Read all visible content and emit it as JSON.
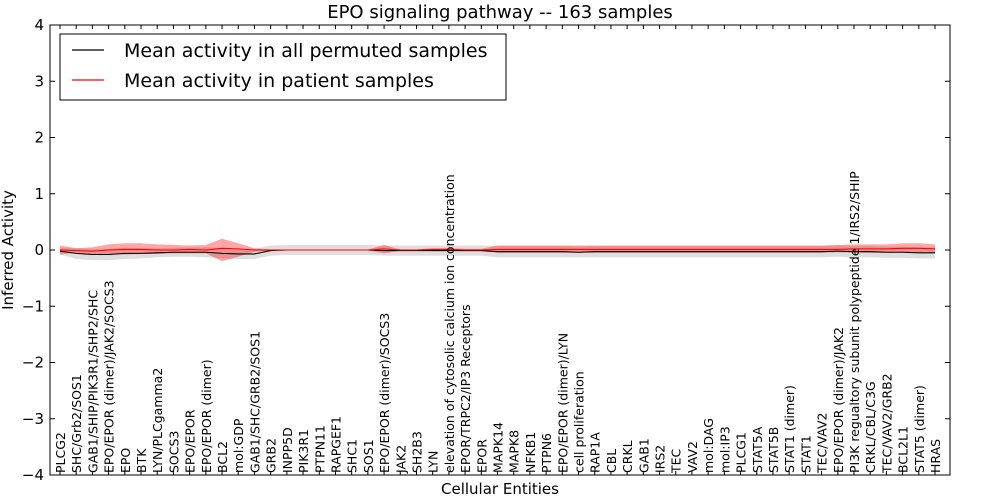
{
  "chart_data": {
    "type": "line",
    "title": "EPO signaling pathway -- 163 samples",
    "xlabel": "Cellular Entities",
    "ylabel": "Inferred Activity",
    "ylim": [
      -4,
      4
    ],
    "yticks": [
      -4,
      -3,
      -2,
      -1,
      0,
      1,
      2,
      3,
      4
    ],
    "ytick_labels": [
      "−4",
      "−3",
      "−2",
      "−1",
      "0",
      "1",
      "2",
      "3",
      "4"
    ],
    "grid": false,
    "legend_position": "top-left",
    "categories": [
      "PLCG2",
      "SHC/Grb2/SOS1",
      "GAB1/SHIP/PIK3R1/SHP2/SHC",
      "EPO/EPOR (dimer)/JAK2/SOCS3",
      "EPO",
      "BTK",
      "LYN/PLCgamma2",
      "SOCS3",
      "EPO/EPOR",
      "EPO/EPOR (dimer)",
      "BCL2",
      "mol:GDP",
      "GAB1/SHC/GRB2/SOS1",
      "GRB2",
      "INPP5D",
      "PIK3R1",
      "PTPN11",
      "RAPGEF1",
      "SHC1",
      "SOS1",
      "EPO/EPOR (dimer)/SOCS3",
      "JAK2",
      "SH2B3",
      "LYN",
      "elevation of cytosolic calcium ion concentration",
      "EPOR/TRPC2/IP3 Receptors",
      "EPOR",
      "MAPK14",
      "MAPK8",
      "NFKB1",
      "PTPN6",
      "EPO/EPOR (dimer)/LYN",
      "cell proliferation",
      "RAP1A",
      "CBL",
      "CRKL",
      "GAB1",
      "IRS2",
      "TEC",
      "VAV2",
      "mol:DAG",
      "mol:IP3",
      "PLCG1",
      "STAT5A",
      "STAT5B",
      "STAT1 (dimer)",
      "STAT1",
      "TEC/VAV2",
      "EPO/EPOR (dimer)/JAK2",
      "PI3K regualtory subunit polypeptide 1/IRS2/SHIP",
      "CRKL/CBL/C3G",
      "TEC/VAV2/GRB2",
      "BCL2L1",
      "STAT5 (dimer)",
      "HRAS"
    ],
    "series": [
      {
        "name": "Mean activity in all permuted samples",
        "color": "#000000",
        "values": [
          -0.02,
          -0.06,
          -0.08,
          -0.08,
          -0.06,
          -0.06,
          -0.05,
          -0.04,
          -0.04,
          -0.04,
          -0.06,
          -0.07,
          -0.07,
          -0.01,
          0.0,
          0.0,
          0.0,
          0.0,
          0.0,
          0.0,
          -0.01,
          -0.01,
          -0.01,
          -0.01,
          -0.01,
          -0.01,
          -0.01,
          -0.03,
          -0.03,
          -0.03,
          -0.03,
          -0.03,
          -0.04,
          -0.03,
          -0.03,
          -0.03,
          -0.03,
          -0.03,
          -0.03,
          -0.03,
          -0.03,
          -0.03,
          -0.03,
          -0.03,
          -0.03,
          -0.03,
          -0.03,
          -0.03,
          -0.02,
          -0.03,
          -0.03,
          -0.04,
          -0.04,
          -0.05,
          -0.05
        ],
        "band_lower": [
          -0.08,
          -0.16,
          -0.18,
          -0.18,
          -0.16,
          -0.15,
          -0.13,
          -0.12,
          -0.12,
          -0.13,
          -0.15,
          -0.16,
          -0.16,
          -0.1,
          -0.09,
          -0.09,
          -0.09,
          -0.09,
          -0.09,
          -0.09,
          -0.1,
          -0.1,
          -0.1,
          -0.1,
          -0.1,
          -0.1,
          -0.1,
          -0.13,
          -0.13,
          -0.13,
          -0.13,
          -0.13,
          -0.13,
          -0.13,
          -0.13,
          -0.13,
          -0.13,
          -0.13,
          -0.13,
          -0.13,
          -0.13,
          -0.13,
          -0.13,
          -0.13,
          -0.13,
          -0.13,
          -0.13,
          -0.13,
          -0.12,
          -0.13,
          -0.13,
          -0.14,
          -0.14,
          -0.15,
          -0.15
        ],
        "band_upper": [
          0.04,
          0.04,
          0.02,
          0.02,
          0.04,
          0.03,
          0.03,
          0.04,
          0.04,
          0.05,
          0.03,
          0.02,
          0.02,
          0.08,
          0.09,
          0.09,
          0.09,
          0.09,
          0.09,
          0.09,
          0.08,
          0.08,
          0.08,
          0.08,
          0.08,
          0.08,
          0.08,
          0.07,
          0.07,
          0.07,
          0.07,
          0.07,
          0.06,
          0.07,
          0.07,
          0.07,
          0.07,
          0.07,
          0.07,
          0.07,
          0.07,
          0.07,
          0.07,
          0.07,
          0.07,
          0.07,
          0.07,
          0.07,
          0.08,
          0.07,
          0.07,
          0.06,
          0.06,
          0.05,
          0.05
        ]
      },
      {
        "name": "Mean activity in patient samples",
        "color": "#ff0000",
        "values": [
          0.0,
          -0.01,
          -0.02,
          0.0,
          0.01,
          0.01,
          0.0,
          0.0,
          0.01,
          0.0,
          0.03,
          0.02,
          0.0,
          0.0,
          0.0,
          0.0,
          0.0,
          0.0,
          0.0,
          0.0,
          0.02,
          0.0,
          0.0,
          0.01,
          0.01,
          0.0,
          0.0,
          0.01,
          0.01,
          0.01,
          0.01,
          0.01,
          0.01,
          0.01,
          0.01,
          0.01,
          0.01,
          0.01,
          0.01,
          0.01,
          0.01,
          0.01,
          0.01,
          0.01,
          0.01,
          0.01,
          0.01,
          0.01,
          0.01,
          0.02,
          0.02,
          0.02,
          0.03,
          0.03,
          0.02
        ],
        "band_lower": [
          -0.08,
          -0.05,
          -0.08,
          -0.07,
          -0.08,
          -0.07,
          -0.07,
          -0.06,
          -0.06,
          -0.06,
          -0.2,
          -0.12,
          -0.03,
          -0.01,
          -0.01,
          -0.01,
          -0.01,
          -0.01,
          -0.01,
          -0.01,
          -0.06,
          -0.01,
          -0.01,
          -0.02,
          -0.02,
          -0.02,
          -0.02,
          -0.05,
          -0.05,
          -0.05,
          -0.05,
          -0.05,
          -0.05,
          -0.05,
          -0.05,
          -0.05,
          -0.05,
          -0.05,
          -0.05,
          -0.05,
          -0.05,
          -0.05,
          -0.05,
          -0.05,
          -0.05,
          -0.05,
          -0.05,
          -0.05,
          -0.04,
          -0.05,
          -0.05,
          -0.05,
          -0.04,
          -0.04,
          -0.04
        ],
        "band_upper": [
          0.08,
          0.03,
          0.05,
          0.1,
          0.12,
          0.12,
          0.1,
          0.09,
          0.08,
          0.09,
          0.2,
          0.12,
          0.03,
          0.01,
          0.01,
          0.01,
          0.01,
          0.01,
          0.01,
          0.01,
          0.09,
          0.01,
          0.01,
          0.03,
          0.03,
          0.02,
          0.02,
          0.08,
          0.08,
          0.08,
          0.08,
          0.08,
          0.08,
          0.08,
          0.08,
          0.08,
          0.08,
          0.08,
          0.08,
          0.08,
          0.08,
          0.08,
          0.08,
          0.08,
          0.08,
          0.08,
          0.08,
          0.08,
          0.09,
          0.1,
          0.1,
          0.1,
          0.12,
          0.12,
          0.1
        ]
      }
    ]
  }
}
